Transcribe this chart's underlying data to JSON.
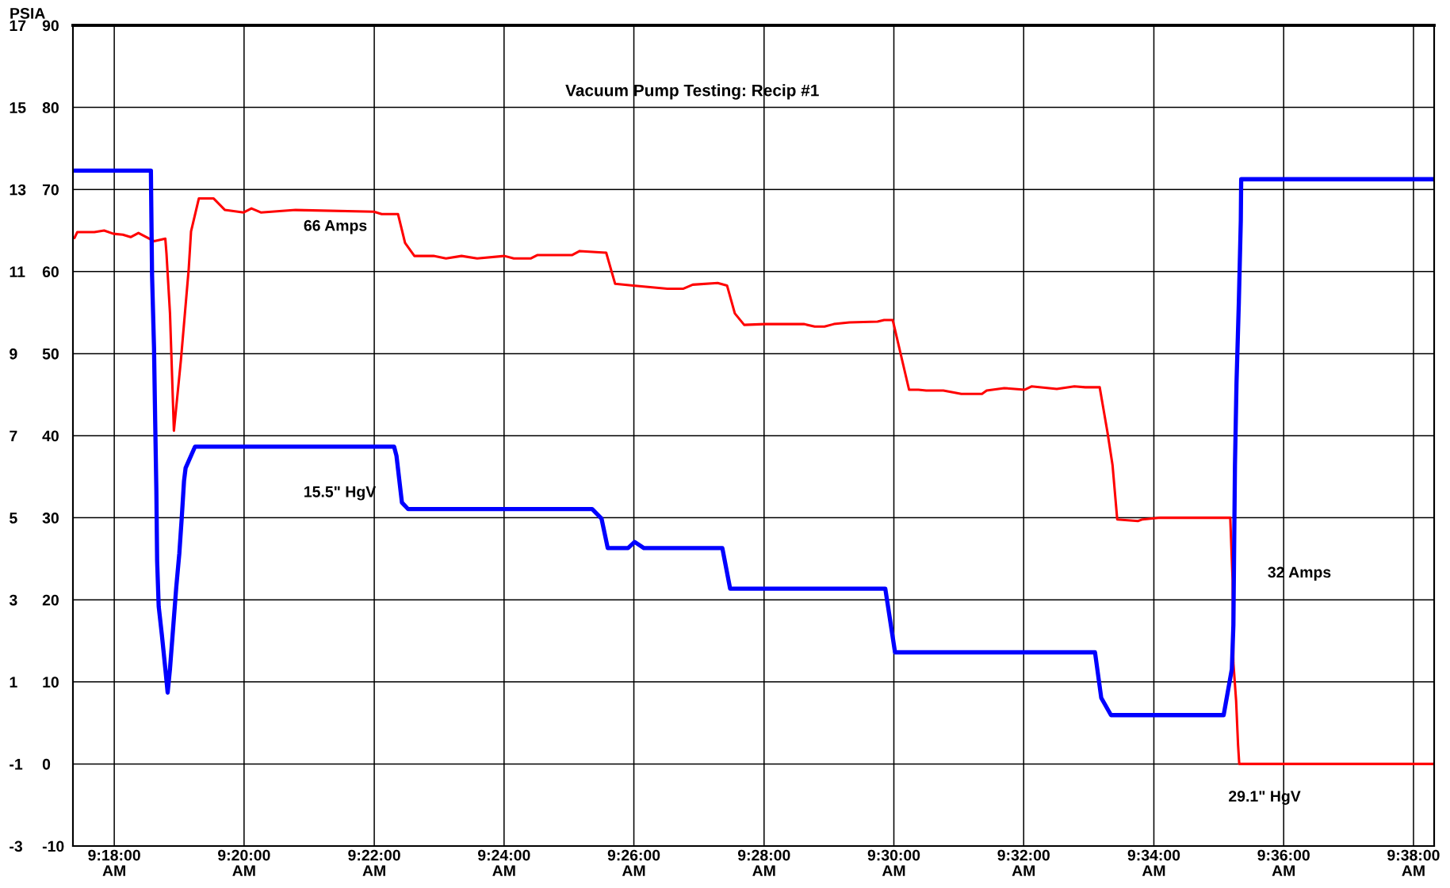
{
  "chart_data": {
    "type": "line",
    "title": "Vacuum Pump Testing: Recip #1",
    "y2label": "PSIA",
    "xlim": [
      9.2894,
      9.6386
    ],
    "xticks": [
      {
        "value": 9.3,
        "label": "9:18:00\nAM"
      },
      {
        "value": 9.3333,
        "label": "9:20:00\nAM"
      },
      {
        "value": 9.3667,
        "label": "9:22:00\nAM"
      },
      {
        "value": 9.4,
        "label": "9:24:00\nAM"
      },
      {
        "value": 9.4333,
        "label": "9:26:00\nAM"
      },
      {
        "value": 9.4667,
        "label": "9:28:00\nAM"
      },
      {
        "value": 9.5,
        "label": "9:30:00\nAM"
      },
      {
        "value": 9.5333,
        "label": "9:32:00\nAM"
      },
      {
        "value": 9.5667,
        "label": "9:34:00\nAM"
      },
      {
        "value": 9.6,
        "label": "9:36:00\nAM"
      },
      {
        "value": 9.6333,
        "label": "9:38:00\nAM"
      }
    ],
    "ylim": [
      -10,
      90
    ],
    "yticks": [
      -10,
      0,
      10,
      20,
      30,
      40,
      50,
      60,
      70,
      80,
      90
    ],
    "y2lim": [
      -3,
      17
    ],
    "y2ticks": [
      -3,
      -1,
      1,
      3,
      5,
      7,
      9,
      11,
      13,
      15,
      17
    ],
    "grid": true,
    "series": [
      {
        "color": "#ff0000",
        "x": [
          9.2898,
          9.2905,
          9.2949,
          9.2974,
          9.2998,
          9.3022,
          9.3042,
          9.3062,
          9.3102,
          9.3131,
          9.3134,
          9.3143,
          9.3153,
          9.3171,
          9.3191,
          9.3197,
          9.3217,
          9.3255,
          9.3284,
          9.3332,
          9.3352,
          9.3376,
          9.3465,
          9.3666,
          9.3686,
          9.3728,
          9.3746,
          9.377,
          9.3819,
          9.3851,
          9.3891,
          9.3931,
          9.4001,
          9.4025,
          9.4069,
          9.4085,
          9.4174,
          9.4194,
          9.4262,
          9.4285,
          9.4331,
          9.4419,
          9.4459,
          9.4484,
          9.4548,
          9.4572,
          9.4592,
          9.4616,
          9.4669,
          9.4769,
          9.4797,
          9.4822,
          9.4846,
          9.4886,
          9.4958,
          9.4975,
          9.4997,
          9.5039,
          9.5063,
          9.5083,
          9.5127,
          9.5173,
          9.5226,
          9.5238,
          9.5283,
          9.5336,
          9.5353,
          9.5418,
          9.5463,
          9.5491,
          9.5528,
          9.5548,
          9.5561,
          9.5573,
          9.5626,
          9.5638,
          9.5683,
          9.5863,
          9.5865,
          9.5869,
          9.5871,
          9.5878,
          9.5883,
          9.5886,
          9.6385
        ],
        "values": [
          64.1,
          64.8,
          64.8,
          65.0,
          64.6,
          64.5,
          64.2,
          64.7,
          63.7,
          64.0,
          62.2,
          54.9,
          40.6,
          49.2,
          60.3,
          64.9,
          68.9,
          68.9,
          67.5,
          67.2,
          67.7,
          67.2,
          67.5,
          67.3,
          67.0,
          67.0,
          63.5,
          61.9,
          61.9,
          61.6,
          61.9,
          61.6,
          61.9,
          61.6,
          61.6,
          62.0,
          62.0,
          62.5,
          62.3,
          58.5,
          58.3,
          57.9,
          57.9,
          58.4,
          58.6,
          58.3,
          54.9,
          53.5,
          53.6,
          53.6,
          53.3,
          53.3,
          53.6,
          53.8,
          53.9,
          54.1,
          54.1,
          45.6,
          45.6,
          45.5,
          45.5,
          45.1,
          45.1,
          45.5,
          45.8,
          45.6,
          46.0,
          45.7,
          46.0,
          45.9,
          45.9,
          40.4,
          36.4,
          29.8,
          29.6,
          29.8,
          30.0,
          30.0,
          27.4,
          22.4,
          12.3,
          7.7,
          2.3,
          0.0,
          0.0
        ]
      },
      {
        "color": "#0000ff",
        "axis": "y2",
        "x": [
          9.2898,
          9.3094,
          9.3095,
          9.3097,
          9.3102,
          9.3105,
          9.3108,
          9.311,
          9.3114,
          9.3122,
          9.3131,
          9.3137,
          9.3143,
          9.3151,
          9.3159,
          9.3167,
          9.3173,
          9.3179,
          9.3183,
          9.3207,
          9.3718,
          9.3724,
          9.3738,
          9.3754,
          9.4226,
          9.425,
          9.4266,
          9.4318,
          9.4335,
          9.4359,
          9.456,
          9.458,
          9.4978,
          9.5003,
          9.5516,
          9.5532,
          9.5557,
          9.5846,
          9.5867,
          9.5871,
          9.5875,
          9.5879,
          9.5885,
          9.589,
          9.5891,
          9.6385
        ],
        "values": [
          13.46,
          13.46,
          12.58,
          10.9,
          9.15,
          7.35,
          5.67,
          3.95,
          2.84,
          2.16,
          1.32,
          0.74,
          1.32,
          2.31,
          3.3,
          4.14,
          4.98,
          5.9,
          6.21,
          6.73,
          6.73,
          6.51,
          5.37,
          5.21,
          5.21,
          4.98,
          4.26,
          4.26,
          4.41,
          4.26,
          4.26,
          3.27,
          3.27,
          1.72,
          1.72,
          0.61,
          0.19,
          0.19,
          1.31,
          2.39,
          6.27,
          8.29,
          10.26,
          12.24,
          13.25,
          13.25
        ]
      }
    ],
    "annotations": [
      "66 Amps",
      "15.5\" HgV",
      "32 Amps",
      "29.1\" HgV"
    ]
  }
}
